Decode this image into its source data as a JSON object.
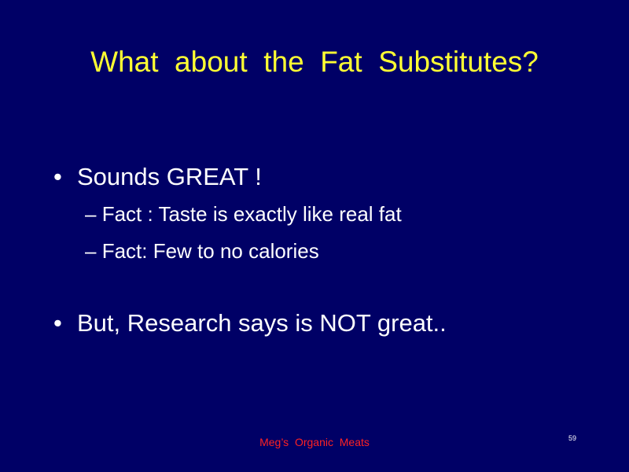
{
  "slide": {
    "title": "What  about  the  Fat  Substitutes?",
    "bullets": [
      {
        "marker": "•",
        "text": "Sounds GREAT !",
        "sub": [
          {
            "marker": "–",
            "text": "Fact : Taste is exactly like real fat"
          },
          {
            "marker": "–",
            "text": "Fact: Few to no calories"
          }
        ]
      },
      {
        "marker": "•",
        "text": "But, Research says is NOT great.."
      }
    ],
    "footer": "Meg’s  Organic  Meats",
    "page_number": "59"
  },
  "colors": {
    "background": "#000066",
    "title": "#ffff33",
    "body_text": "#ffffff",
    "footer": "#ff2222"
  }
}
